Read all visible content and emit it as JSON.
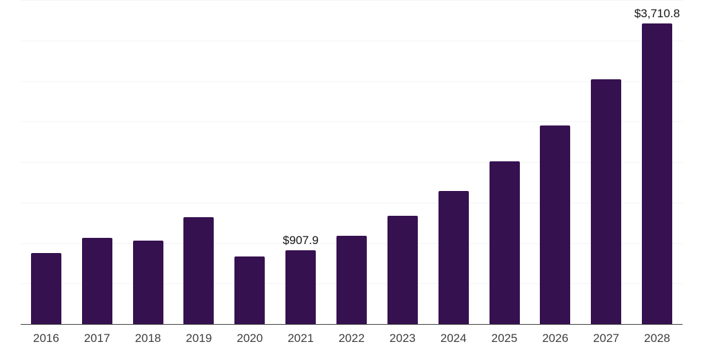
{
  "chart_data": {
    "type": "bar",
    "title": "",
    "xlabel": "",
    "ylabel": "",
    "categories": [
      "2016",
      "2017",
      "2018",
      "2019",
      "2020",
      "2021",
      "2022",
      "2023",
      "2024",
      "2025",
      "2026",
      "2027",
      "2028"
    ],
    "values": [
      875,
      1065,
      1030,
      1320,
      835,
      907.9,
      1090,
      1340,
      1640,
      2010,
      2455,
      3020,
      3710.8
    ],
    "data_labels": [
      {
        "category": "2021",
        "text": "$907.9"
      },
      {
        "category": "2028",
        "text": "$3,710.8"
      }
    ],
    "ylim": [
      0,
      4000
    ],
    "gridline_interval": 500,
    "grid": true,
    "legend": false,
    "y_axis_labels_visible": false
  },
  "colors": {
    "bar": "#361150",
    "axis": "#3f3f3f",
    "gridline": "#f4f4f4",
    "tick_label": "#3d3d3d",
    "data_label": "#141414",
    "background": "#ffffff"
  }
}
